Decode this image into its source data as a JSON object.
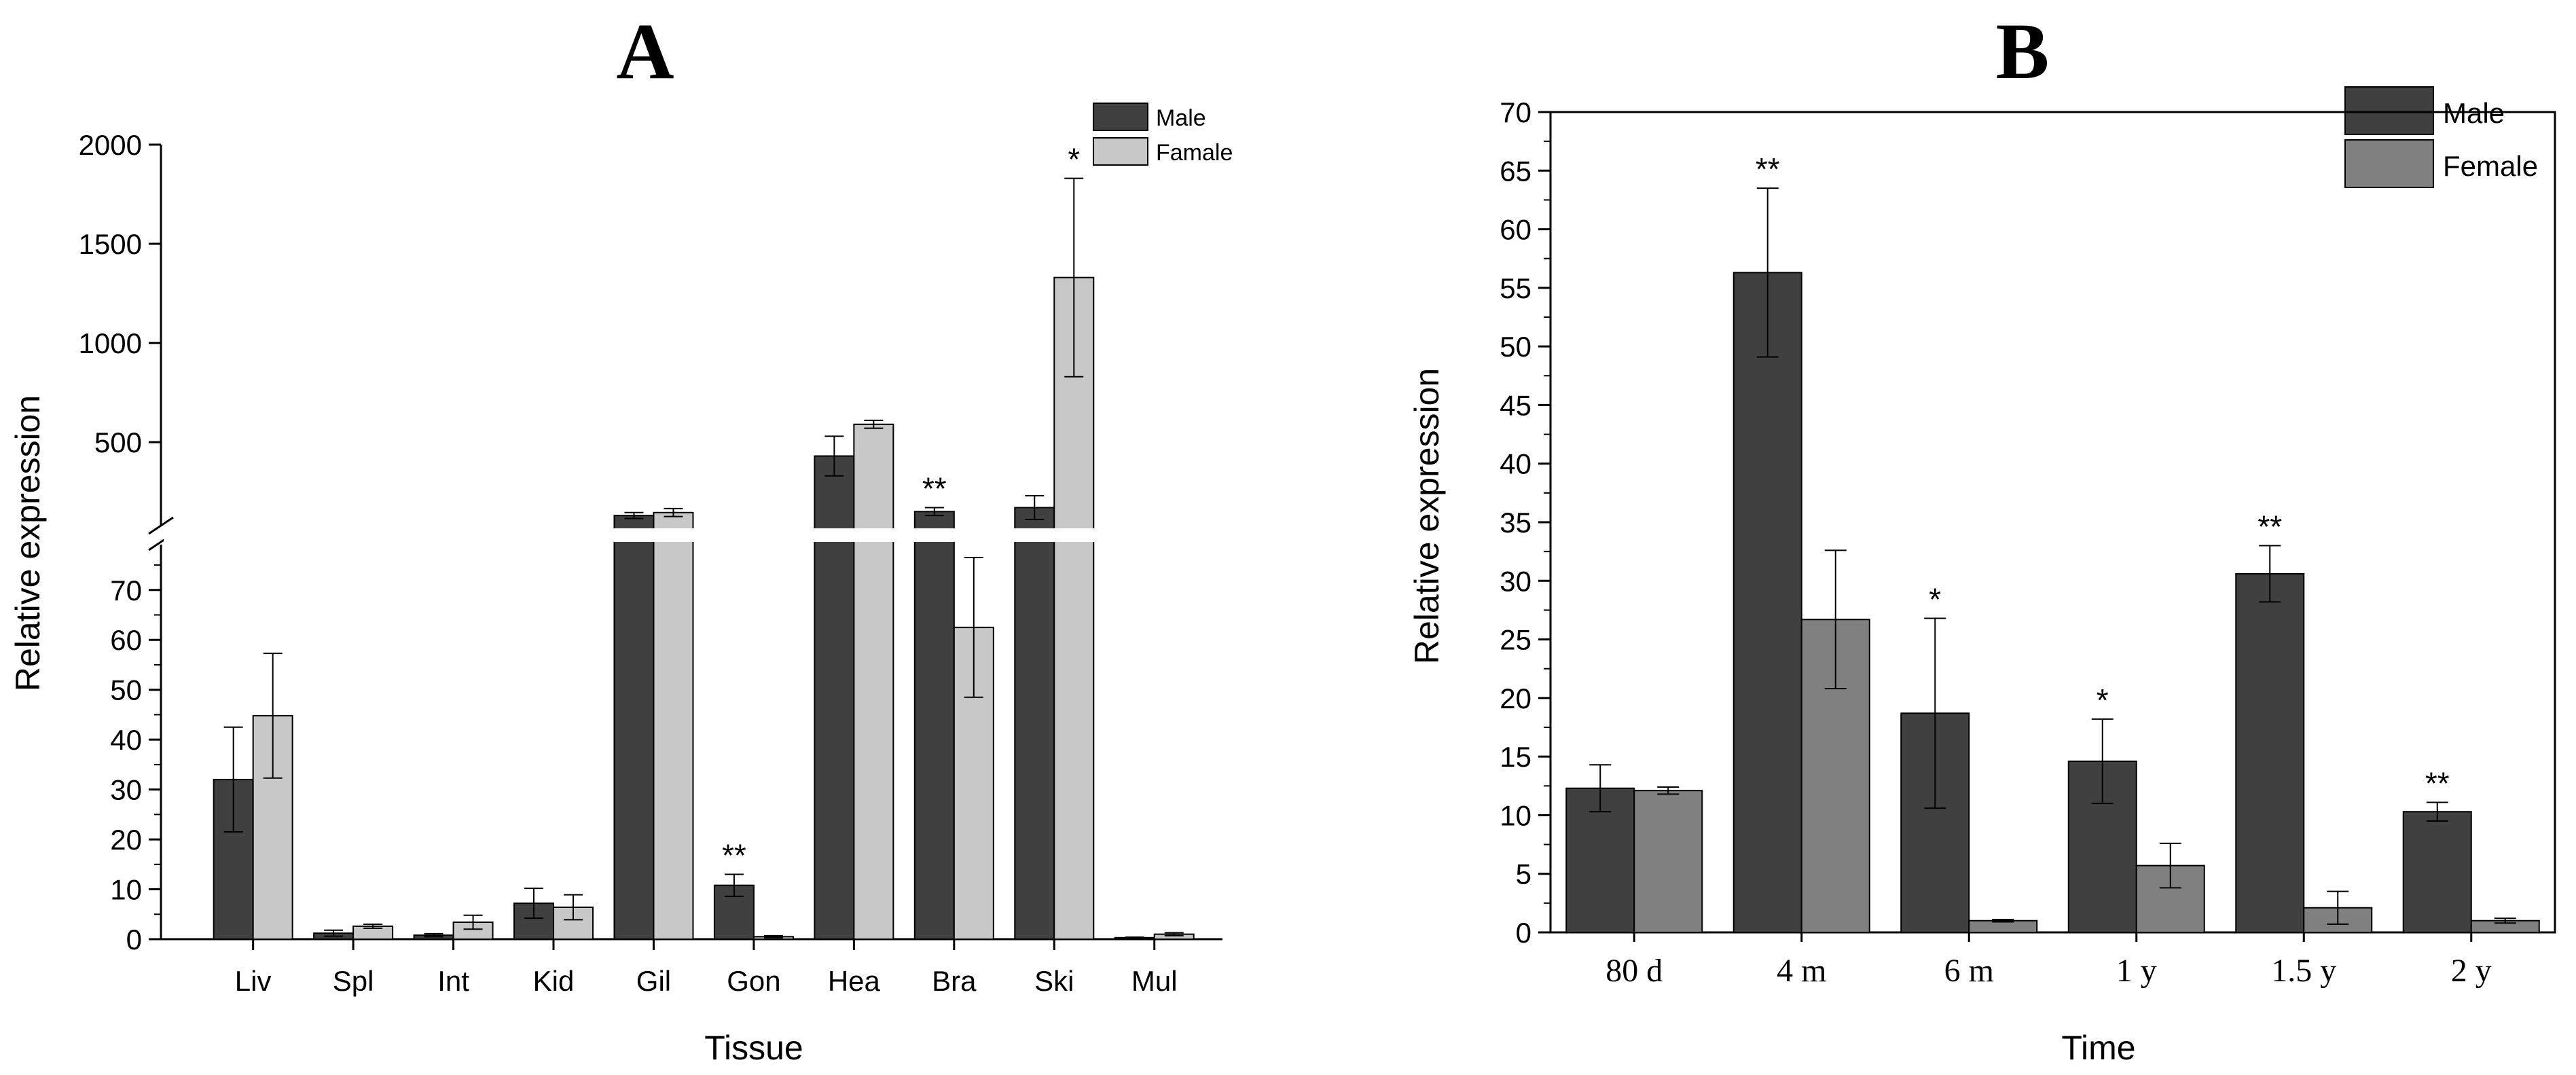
{
  "chart_data": [
    {
      "type": "bar",
      "panel_label": "A",
      "xlabel": "Tissue",
      "ylabel": "Relative expression",
      "categories": [
        "Liv",
        "Spl",
        "Int",
        "Kid",
        "Gil",
        "Gon",
        "Hea",
        "Bra",
        "Ski",
        "Mul"
      ],
      "axis_break": {
        "lower_range": [
          0,
          78
        ],
        "upper_range": [
          110,
          2000
        ]
      },
      "lower_ticks": [
        0,
        10,
        20,
        30,
        40,
        50,
        60,
        70
      ],
      "upper_ticks": [
        500,
        1000,
        1500,
        2000
      ],
      "series": [
        {
          "name": "Male",
          "color": "#404040",
          "values": [
            32,
            1.2,
            0.8,
            7.2,
            130,
            10.8,
            430,
            150,
            170,
            0.3
          ],
          "errors": [
            10.5,
            0.6,
            0.3,
            3.0,
            15,
            2.2,
            100,
            20,
            60,
            0.1
          ]
        },
        {
          "name": "Famale",
          "color": "#c8c8c8",
          "values": [
            44.8,
            2.6,
            3.4,
            6.4,
            145,
            0.5,
            590,
            62.5,
            1330,
            1.0
          ],
          "errors": [
            12.5,
            0.4,
            1.4,
            2.5,
            20,
            0.2,
            20,
            14,
            500,
            0.3
          ]
        }
      ],
      "annotations": [
        {
          "category": "Gon",
          "series": "Male",
          "text": "**"
        },
        {
          "category": "Bra",
          "series": "Male",
          "text": "**"
        },
        {
          "category": "Ski",
          "series": "Famale",
          "text": "*"
        }
      ],
      "legend_position": "top-right"
    },
    {
      "type": "bar",
      "panel_label": "B",
      "xlabel": "Time",
      "ylabel": "Relative expression",
      "categories": [
        "80 d",
        "4 m",
        "6 m",
        "1 y",
        "1.5 y",
        "2 y"
      ],
      "ylim": [
        0,
        70
      ],
      "ticks": [
        0,
        5,
        10,
        15,
        20,
        25,
        30,
        35,
        40,
        45,
        50,
        55,
        60,
        65,
        70
      ],
      "series": [
        {
          "name": "Male",
          "color": "#404040",
          "values": [
            12.3,
            56.3,
            18.7,
            14.6,
            30.6,
            10.3
          ],
          "errors": [
            2.0,
            7.2,
            8.1,
            3.6,
            2.4,
            0.8
          ]
        },
        {
          "name": "Female",
          "color": "#808080",
          "values": [
            12.1,
            26.7,
            1.0,
            5.7,
            2.1,
            1.0
          ],
          "errors": [
            0.3,
            5.9,
            0.1,
            1.9,
            1.4,
            0.2
          ]
        }
      ],
      "annotations": [
        {
          "category": "4 m",
          "series": "Male",
          "text": "**"
        },
        {
          "category": "6 m",
          "series": "Male",
          "text": "*"
        },
        {
          "category": "1 y",
          "series": "Male",
          "text": "*"
        },
        {
          "category": "1.5 y",
          "series": "Male",
          "text": "**"
        },
        {
          "category": "2 y",
          "series": "Male",
          "text": "**"
        }
      ],
      "legend_position": "top-right"
    }
  ]
}
